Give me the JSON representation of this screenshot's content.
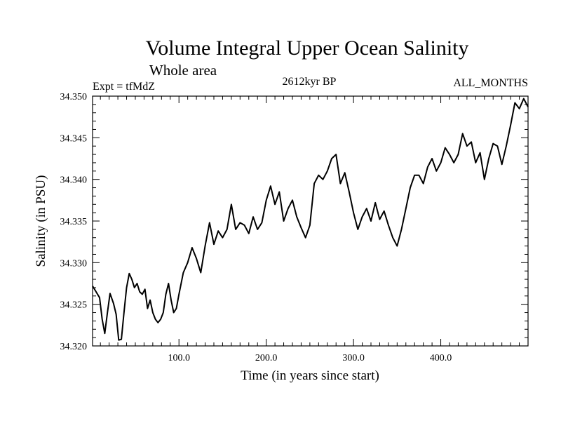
{
  "chart_data": {
    "type": "line",
    "title": "Volume Integral Upper Ocean Salinity",
    "subtitle": "Whole area",
    "experiment": "Expt = tfMdZ",
    "period": "2612kyr BP",
    "months": "ALL_MONTHS",
    "xlabel": "Time (in years since start)",
    "ylabel": "Salinity (in PSU)",
    "xlim": [
      1,
      500
    ],
    "ylim": [
      34.32,
      34.35
    ],
    "x_ticks": [
      100,
      200,
      300,
      400
    ],
    "x_tick_labels": [
      "100.0",
      "200.0",
      "300.0",
      "400.0"
    ],
    "y_ticks": [
      34.32,
      34.325,
      34.33,
      34.335,
      34.34,
      34.345,
      34.35
    ],
    "y_tick_labels": [
      "34.320",
      "34.325",
      "34.330",
      "34.335",
      "34.340",
      "34.345",
      "34.350"
    ],
    "grid": false,
    "series": [
      {
        "name": "salinity",
        "x": [
          1,
          5,
          9,
          12,
          15,
          18,
          21,
          25,
          28,
          31,
          34,
          37,
          40,
          43,
          46,
          49,
          52,
          55,
          58,
          61,
          64,
          67,
          70,
          73,
          76,
          79,
          82,
          85,
          88,
          91,
          94,
          97,
          100,
          105,
          110,
          115,
          120,
          125,
          130,
          135,
          140,
          145,
          150,
          155,
          160,
          165,
          170,
          175,
          180,
          185,
          190,
          195,
          200,
          205,
          210,
          215,
          220,
          225,
          230,
          235,
          240,
          245,
          250,
          255,
          260,
          265,
          270,
          275,
          280,
          285,
          290,
          295,
          300,
          305,
          310,
          315,
          320,
          325,
          330,
          335,
          340,
          345,
          350,
          355,
          360,
          365,
          370,
          375,
          380,
          385,
          390,
          395,
          400,
          405,
          410,
          415,
          420,
          425,
          430,
          435,
          440,
          445,
          450,
          455,
          460,
          465,
          470,
          475,
          480,
          485,
          490,
          495,
          500
        ],
        "values": [
          34.3272,
          34.3265,
          34.3258,
          34.3232,
          34.3215,
          34.324,
          34.3263,
          34.3251,
          34.3238,
          34.3207,
          34.3208,
          34.324,
          34.327,
          34.3287,
          34.328,
          34.327,
          34.3275,
          34.3265,
          34.3262,
          34.3268,
          34.3245,
          34.3255,
          34.324,
          34.3232,
          34.3228,
          34.3232,
          34.324,
          34.3262,
          34.3275,
          34.3255,
          34.324,
          34.3245,
          34.3262,
          34.3288,
          34.33,
          34.3318,
          34.3305,
          34.3288,
          34.332,
          34.3348,
          34.3322,
          34.3338,
          34.333,
          34.334,
          34.337,
          34.334,
          34.3348,
          34.3345,
          34.3335,
          34.3355,
          34.334,
          34.3348,
          34.3375,
          34.3392,
          34.337,
          34.3385,
          34.335,
          34.3365,
          34.3375,
          34.3355,
          34.3342,
          34.333,
          34.3345,
          34.3395,
          34.3405,
          34.34,
          34.341,
          34.3425,
          34.343,
          34.3395,
          34.3408,
          34.3385,
          34.336,
          34.334,
          34.3355,
          34.3365,
          34.335,
          34.3372,
          34.3352,
          34.3362,
          34.3345,
          34.333,
          34.332,
          34.334,
          34.3365,
          34.339,
          34.3405,
          34.3405,
          34.3395,
          34.3415,
          34.3425,
          34.341,
          34.342,
          34.3438,
          34.343,
          34.342,
          34.343,
          34.3455,
          34.344,
          34.3445,
          34.342,
          34.3432,
          34.34,
          34.3425,
          34.3443,
          34.344,
          34.3418,
          34.344,
          34.3465,
          34.3492,
          34.3485,
          34.3497,
          34.3487
        ]
      }
    ]
  }
}
